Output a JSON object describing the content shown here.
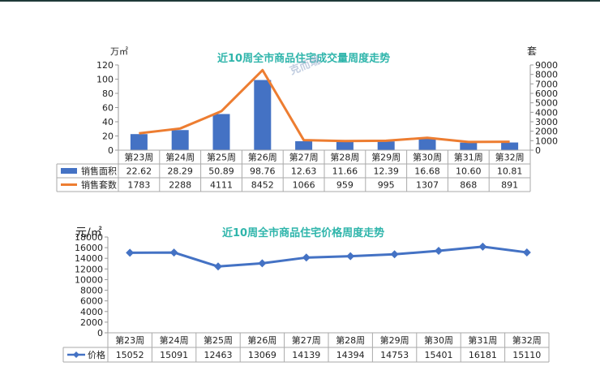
{
  "charts": [
    {
      "title": "近10周全市商品住宅成交量周度走势",
      "left_unit": "万㎡",
      "right_unit": "套",
      "watermark": "克而瑞",
      "legend_area": "销售面积",
      "legend_units": "销售套数",
      "bar_color": "#4472c4",
      "line_color": "#ed7d31"
    },
    {
      "title": "近10周全市商品住宅价格周度走势",
      "left_unit": "元/㎡",
      "legend_price": "价格",
      "line_color": "#4472c4"
    }
  ],
  "chart_data": [
    {
      "type": "bar",
      "title": "近10周全市商品住宅成交量周度走势",
      "categories": [
        "第23周",
        "第24周",
        "第25周",
        "第26周",
        "第27周",
        "第28周",
        "第29周",
        "第30周",
        "第31周",
        "第32周"
      ],
      "series": [
        {
          "name": "销售面积",
          "type": "bar",
          "axis": "left",
          "values": [
            22.62,
            28.29,
            50.89,
            98.76,
            12.63,
            11.66,
            12.39,
            16.68,
            10.6,
            10.81
          ],
          "labels": [
            "22.62",
            "28.29",
            "50.89",
            "98.76",
            "12.63",
            "11.66",
            "12.39",
            "16.68",
            "10.60",
            "10.81"
          ]
        },
        {
          "name": "销售套数",
          "type": "line",
          "axis": "right",
          "values": [
            1783,
            2288,
            4111,
            8452,
            1066,
            959,
            995,
            1307,
            868,
            891
          ],
          "labels": [
            "1783",
            "2288",
            "4111",
            "8452",
            "1066",
            "959",
            "995",
            "1307",
            "868",
            "891"
          ]
        }
      ],
      "ylabel": "万㎡",
      "y2label": "套",
      "ylim": [
        0,
        120
      ],
      "y2lim": [
        0,
        9000
      ],
      "yticks": [
        0,
        20,
        40,
        60,
        80,
        100,
        120
      ],
      "y2ticks": [
        0,
        1000,
        2000,
        3000,
        4000,
        5000,
        6000,
        7000,
        8000,
        9000
      ],
      "legend": "data-table"
    },
    {
      "type": "line",
      "title": "近10周全市商品住宅价格周度走势",
      "categories": [
        "第23周",
        "第24周",
        "第25周",
        "第26周",
        "第27周",
        "第28周",
        "第29周",
        "第30周",
        "第31周",
        "第32周"
      ],
      "series": [
        {
          "name": "价格",
          "values": [
            15052,
            15091,
            12463,
            13069,
            14139,
            14394,
            14753,
            15401,
            16181,
            15110
          ],
          "labels": [
            "15052",
            "15091",
            "12463",
            "13069",
            "14139",
            "14394",
            "14753",
            "15401",
            "16181",
            "15110"
          ]
        }
      ],
      "ylabel": "元/㎡",
      "ylim": [
        0,
        18000
      ],
      "yticks": [
        0,
        2000,
        4000,
        6000,
        8000,
        10000,
        12000,
        14000,
        16000,
        18000
      ],
      "legend": "data-table"
    }
  ]
}
